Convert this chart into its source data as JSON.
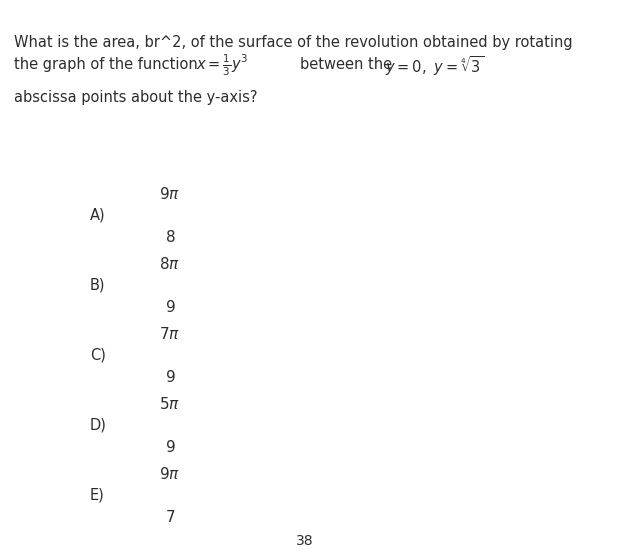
{
  "bg_color": "#ffffff",
  "answer_box_color": "#f5f5e6",
  "question_line1": "What is the area, br^2, of the surface of the revolution obtained by rotating",
  "question_line2_pre": "the graph of the function",
  "question_line2_mid": "between the",
  "question_line3": "abscissa points about the y-axis?",
  "options": [
    {
      "label": "A)",
      "num": "9\\pi",
      "den": "8"
    },
    {
      "label": "B)",
      "num": "8\\pi",
      "den": "9"
    },
    {
      "label": "C)",
      "num": "7\\pi",
      "den": "9"
    },
    {
      "label": "D)",
      "num": "5\\pi",
      "den": "9"
    },
    {
      "label": "E)",
      "num": "9\\pi",
      "den": "7"
    }
  ],
  "page_number": "38",
  "text_color": "#2d2d2d",
  "circle_color": "#888888",
  "font_size_question": 10.5,
  "font_size_options": 10.5
}
